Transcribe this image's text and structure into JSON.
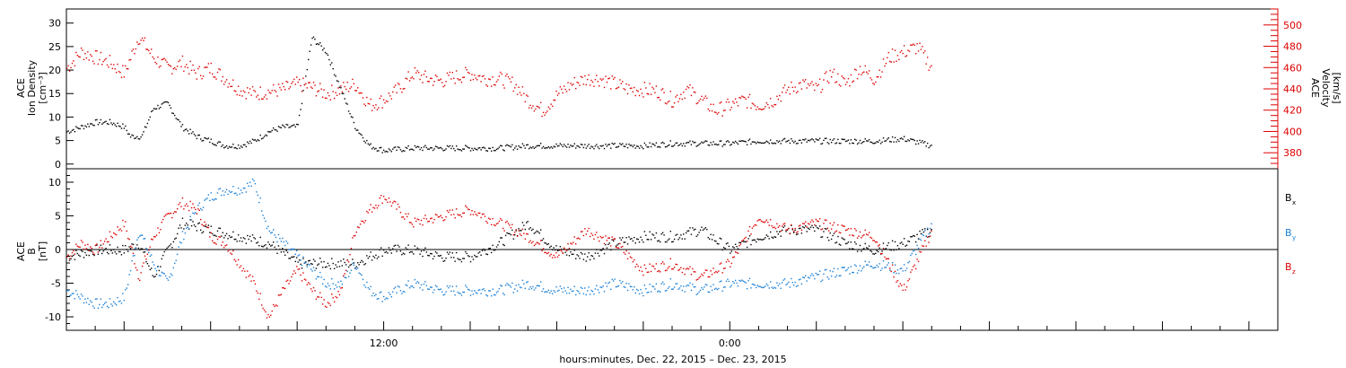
{
  "chart_data": [
    {
      "type": "scatter",
      "panel": "top",
      "ylabel_left": [
        "ACE",
        "Ion Density",
        "[cm⁻³]"
      ],
      "ylabel_right": [
        "ACE",
        "Velocity",
        "[km/s]"
      ],
      "ylim_left": [
        -1,
        33
      ],
      "ylim_right": [
        365,
        515
      ],
      "left_ticks": [
        "0",
        "5",
        "10",
        "15",
        "20",
        "25",
        "30"
      ],
      "right_ticks": [
        "380",
        "400",
        "420",
        "440",
        "460",
        "480",
        "500"
      ],
      "left_color": "#000000",
      "right_color": "#dd0000",
      "x_hours": [
        0,
        5,
        11,
        15,
        17,
        23,
        29,
        30,
        42
      ],
      "series": [
        {
          "axis": "left",
          "color": "#000000",
          "x": [
            0,
            0.5,
            1,
            1.5,
            2,
            2.2,
            2.6,
            3,
            3.5,
            4,
            4.5,
            5,
            5.5,
            6,
            6.5,
            7,
            7.5,
            8,
            8.5,
            9,
            9.5,
            10,
            10.5,
            11,
            12,
            13,
            14,
            15,
            16,
            17,
            18,
            19,
            20,
            21,
            22,
            23,
            24,
            25,
            26,
            27,
            28,
            29,
            30
          ],
          "y": [
            7,
            8,
            9,
            9,
            8,
            6,
            6,
            12,
            13,
            8,
            6,
            5,
            4,
            4,
            5,
            7,
            8,
            8,
            27,
            24,
            16,
            8,
            4,
            3,
            3.5,
            3.5,
            3.5,
            3.5,
            4,
            4,
            4,
            4,
            4,
            4.5,
            4.5,
            4.5,
            5,
            5,
            5,
            5,
            5,
            5.5,
            4
          ]
        },
        {
          "axis": "right",
          "color": "#dd0000",
          "x": [
            0,
            0.5,
            1,
            1.5,
            2,
            2.5,
            3,
            3.5,
            4,
            4.5,
            5,
            5.5,
            6,
            6.5,
            7,
            7.5,
            8,
            8.5,
            9,
            9.5,
            10,
            10.5,
            11,
            11.5,
            12,
            12.5,
            13,
            13.5,
            14,
            14.5,
            15,
            15.5,
            16,
            16.5,
            17,
            17.5,
            18,
            18.5,
            19,
            19.5,
            20,
            20.5,
            21,
            21.5,
            22,
            22.5,
            23,
            23.5,
            24,
            24.5,
            25,
            25.5,
            26,
            26.5,
            27,
            27.5,
            28,
            28.5,
            29,
            29.5,
            30
          ],
          "y": [
            460,
            475,
            470,
            465,
            455,
            490,
            470,
            460,
            465,
            455,
            460,
            450,
            440,
            436,
            438,
            440,
            445,
            442,
            436,
            440,
            445,
            425,
            430,
            440,
            455,
            450,
            448,
            452,
            455,
            450,
            450,
            445,
            430,
            420,
            435,
            445,
            450,
            450,
            445,
            440,
            440,
            438,
            430,
            440,
            430,
            420,
            425,
            430,
            425,
            430,
            440,
            445,
            440,
            455,
            445,
            460,
            450,
            470,
            475,
            480,
            460
          ]
        }
      ]
    },
    {
      "type": "scatter",
      "panel": "bottom",
      "ylabel": [
        "ACE",
        "B",
        "[nT]"
      ],
      "ylim": [
        -12,
        12
      ],
      "ticks": [
        "-10",
        "-5",
        "0",
        "5",
        "10"
      ],
      "legend": [
        {
          "label": "B",
          "sub": "x",
          "color": "#000000"
        },
        {
          "label": "B",
          "sub": "y",
          "color": "#1a7fd6"
        },
        {
          "label": "B",
          "sub": "z",
          "color": "#dd0000"
        }
      ],
      "zero_line": true,
      "x_labels": [
        {
          "hour": 11,
          "label": "12:00"
        },
        {
          "hour": 23,
          "label": "0:00"
        }
      ],
      "xlabel": "hours:minutes, Dec. 22, 2015 – Dec. 23, 2015",
      "series": [
        {
          "name": "Bx",
          "color": "#000000",
          "x": [
            0,
            1,
            2,
            2.5,
            3,
            4,
            5,
            6,
            7,
            8,
            9,
            10,
            11,
            12,
            13,
            14,
            15,
            16,
            17,
            18,
            19,
            20,
            21,
            22,
            23,
            24,
            25,
            26,
            27,
            28,
            29,
            30
          ],
          "y": [
            -1,
            0,
            0,
            1,
            -4,
            4,
            3,
            2,
            1,
            -2,
            -2,
            -2,
            0,
            0,
            -1,
            -1,
            1,
            4,
            0,
            -1,
            1,
            2,
            2,
            3,
            0,
            2,
            3,
            3,
            1,
            0,
            1,
            3
          ]
        },
        {
          "name": "By",
          "color": "#1a7fd6",
          "x": [
            0,
            1,
            1.5,
            2,
            2.5,
            3,
            3.5,
            4,
            4.5,
            5,
            5.5,
            6,
            6.5,
            7,
            7.5,
            8,
            8.5,
            9,
            9.5,
            10,
            10.5,
            11,
            12,
            13,
            14,
            15,
            16,
            17,
            18,
            19,
            20,
            21,
            22,
            23,
            24,
            25,
            26,
            27,
            28,
            29,
            30
          ],
          "y": [
            -6,
            -8,
            -8,
            -7,
            3,
            -2,
            -5,
            2,
            6,
            8,
            9,
            9,
            10,
            3,
            1,
            -1,
            -3,
            -5,
            -5,
            -2,
            -6,
            -7,
            -5,
            -6,
            -6,
            -6,
            -5,
            -6,
            -6,
            -5,
            -6,
            -5,
            -6,
            -5,
            -5,
            -5,
            -4,
            -3,
            -2,
            -3,
            4
          ]
        },
        {
          "name": "Bz",
          "color": "#dd0000",
          "x": [
            0,
            0.5,
            1,
            1.5,
            2,
            2.5,
            3,
            3.5,
            4,
            4.5,
            5,
            5.5,
            6,
            6.5,
            7,
            7.5,
            8,
            8.5,
            9,
            9.5,
            10,
            10.5,
            11,
            12,
            13,
            14,
            15,
            16,
            17,
            18,
            19,
            20,
            21,
            22,
            23,
            24,
            25,
            26,
            27,
            28,
            29,
            30
          ],
          "y": [
            -1,
            1,
            0,
            2,
            4,
            -4,
            2,
            5,
            7,
            6,
            2,
            1,
            -2,
            -5,
            -10,
            -6,
            -3,
            -6,
            -8,
            -6,
            3,
            6,
            8,
            4,
            5,
            6,
            4,
            2,
            -1,
            3,
            1,
            -3,
            -2,
            -4,
            -2,
            5,
            3,
            4,
            3,
            2,
            -6,
            3
          ]
        }
      ]
    }
  ]
}
